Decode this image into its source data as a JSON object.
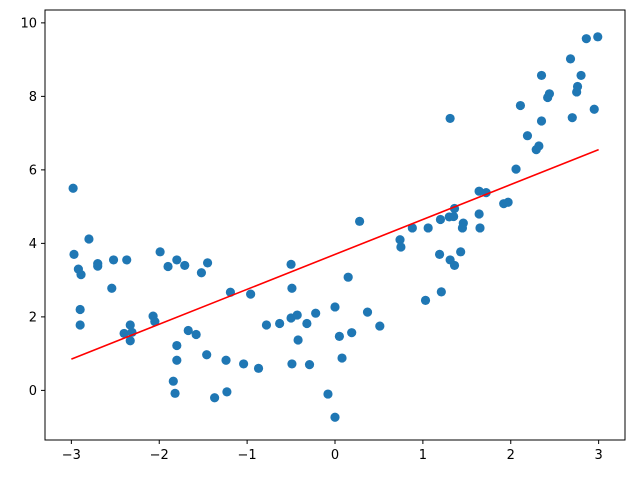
{
  "chart_data": {
    "type": "scatter",
    "title": "",
    "xlabel": "",
    "ylabel": "",
    "xlim": [
      -3.3,
      3.3
    ],
    "ylim": [
      -1.35,
      10.35
    ],
    "grid": false,
    "legend": "none",
    "x_ticks": [
      -3,
      -2,
      -1,
      0,
      1,
      2,
      3
    ],
    "y_ticks": [
      0,
      2,
      4,
      6,
      8,
      10
    ],
    "colors": {
      "points": "#1f77b4",
      "fit_line": "#ff0000"
    },
    "series": [
      {
        "kind": "scatter",
        "points": [
          [
            -2.98,
            5.5
          ],
          [
            -2.97,
            3.7
          ],
          [
            -2.92,
            3.3
          ],
          [
            -2.89,
            3.15
          ],
          [
            -2.9,
            2.2
          ],
          [
            -2.9,
            1.78
          ],
          [
            -2.8,
            4.12
          ],
          [
            -2.7,
            3.45
          ],
          [
            -2.7,
            3.38
          ],
          [
            -2.52,
            3.55
          ],
          [
            -2.54,
            2.78
          ],
          [
            -2.37,
            3.55
          ],
          [
            -2.4,
            1.55
          ],
          [
            -2.33,
            1.78
          ],
          [
            -2.33,
            1.35
          ],
          [
            -2.31,
            1.58
          ],
          [
            -2.07,
            2.02
          ],
          [
            -2.05,
            1.87
          ],
          [
            -1.99,
            3.77
          ],
          [
            -1.9,
            3.37
          ],
          [
            -1.8,
            3.55
          ],
          [
            -1.71,
            3.4
          ],
          [
            -1.67,
            1.63
          ],
          [
            -1.58,
            1.52
          ],
          [
            -1.84,
            0.25
          ],
          [
            -1.82,
            -0.08
          ],
          [
            -1.8,
            1.22
          ],
          [
            -1.8,
            0.82
          ],
          [
            -1.52,
            3.2
          ],
          [
            -1.45,
            3.47
          ],
          [
            -1.46,
            0.97
          ],
          [
            -1.37,
            -0.2
          ],
          [
            -1.24,
            0.82
          ],
          [
            -1.23,
            -0.04
          ],
          [
            -1.19,
            2.67
          ],
          [
            -1.04,
            0.72
          ],
          [
            -0.96,
            2.62
          ],
          [
            -0.87,
            0.6
          ],
          [
            -0.78,
            1.78
          ],
          [
            -0.63,
            1.82
          ],
          [
            -0.5,
            3.43
          ],
          [
            -0.49,
            2.78
          ],
          [
            -0.5,
            1.97
          ],
          [
            -0.43,
            2.05
          ],
          [
            -0.42,
            1.37
          ],
          [
            -0.49,
            0.72
          ],
          [
            -0.32,
            1.82
          ],
          [
            -0.29,
            0.7
          ],
          [
            -0.22,
            2.1
          ],
          [
            -0.08,
            -0.1
          ],
          [
            -0.0,
            2.27
          ],
          [
            0.0,
            -0.73
          ],
          [
            0.05,
            1.47
          ],
          [
            0.08,
            0.88
          ],
          [
            0.15,
            3.08
          ],
          [
            0.19,
            1.57
          ],
          [
            0.28,
            4.6
          ],
          [
            0.37,
            2.13
          ],
          [
            0.51,
            1.75
          ],
          [
            0.74,
            4.1
          ],
          [
            0.75,
            3.9
          ],
          [
            0.88,
            4.42
          ],
          [
            1.03,
            2.45
          ],
          [
            1.06,
            4.42
          ],
          [
            1.19,
            3.7
          ],
          [
            1.2,
            4.65
          ],
          [
            1.21,
            2.68
          ],
          [
            1.3,
            4.72
          ],
          [
            1.31,
            3.55
          ],
          [
            1.31,
            7.4
          ],
          [
            1.36,
            3.4
          ],
          [
            1.35,
            4.73
          ],
          [
            1.36,
            4.95
          ],
          [
            1.43,
            3.77
          ],
          [
            1.46,
            4.55
          ],
          [
            1.45,
            4.42
          ],
          [
            1.64,
            4.8
          ],
          [
            1.64,
            5.42
          ],
          [
            1.65,
            4.42
          ],
          [
            1.72,
            5.38
          ],
          [
            1.92,
            5.08
          ],
          [
            1.97,
            5.12
          ],
          [
            2.06,
            6.02
          ],
          [
            2.11,
            7.75
          ],
          [
            2.19,
            6.93
          ],
          [
            2.29,
            6.55
          ],
          [
            2.32,
            6.65
          ],
          [
            2.35,
            7.33
          ],
          [
            2.35,
            8.57
          ],
          [
            2.42,
            7.97
          ],
          [
            2.44,
            8.07
          ],
          [
            2.68,
            9.02
          ],
          [
            2.7,
            7.42
          ],
          [
            2.75,
            8.12
          ],
          [
            2.76,
            8.27
          ],
          [
            2.8,
            8.57
          ],
          [
            2.86,
            9.57
          ],
          [
            2.95,
            7.65
          ],
          [
            2.99,
            9.62
          ]
        ]
      },
      {
        "kind": "line",
        "points": [
          [
            -3.0,
            0.85
          ],
          [
            3.0,
            6.55
          ]
        ]
      }
    ]
  }
}
